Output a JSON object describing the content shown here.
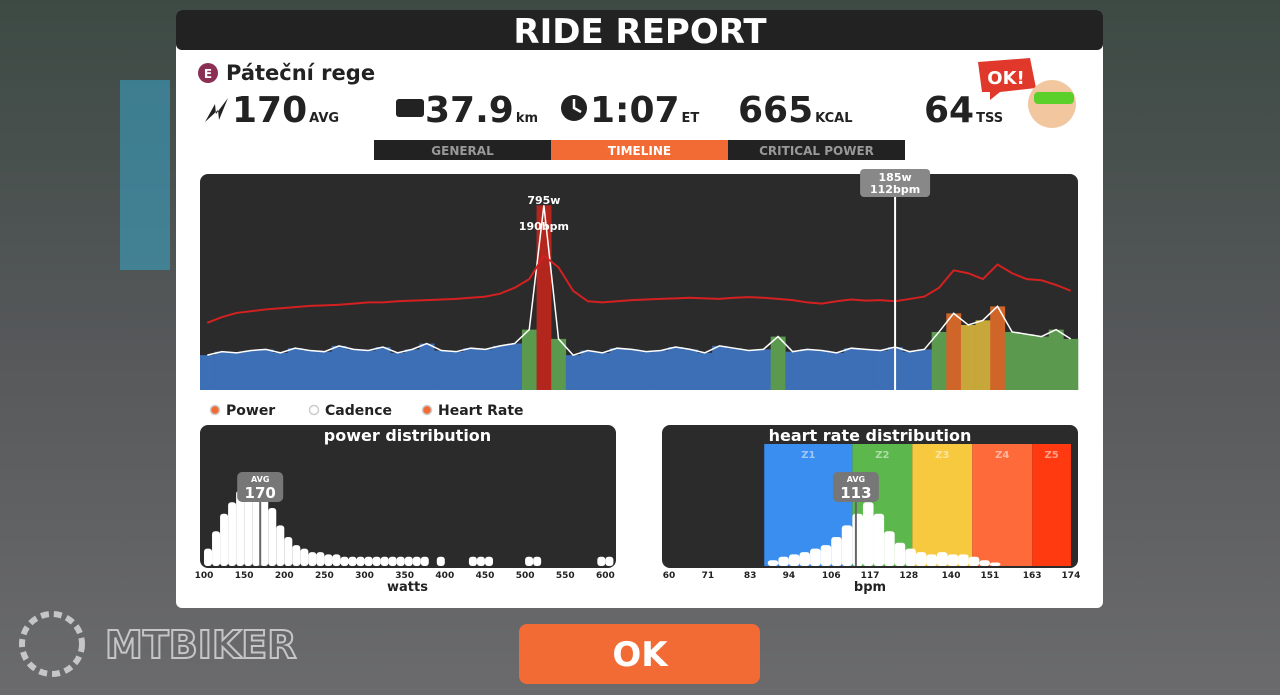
{
  "header": {
    "title": "RIDE REPORT"
  },
  "ride": {
    "badge": "E",
    "name": "Páteční rege",
    "mascot": "OK!"
  },
  "stats": [
    {
      "value": "170",
      "unit": "AVG"
    },
    {
      "value": "37.9",
      "unit": "km"
    },
    {
      "value": "1:07",
      "unit": "ET"
    },
    {
      "value": "665",
      "unit": "KCAL"
    },
    {
      "value": "64",
      "unit": "TSS"
    }
  ],
  "tabs": [
    "GENERAL",
    "TIMELINE",
    "CRITICAL POWER"
  ],
  "timeline": {
    "power": [
      150,
      165,
      160,
      170,
      175,
      160,
      180,
      170,
      165,
      190,
      175,
      170,
      185,
      160,
      175,
      200,
      170,
      165,
      180,
      175,
      190,
      200,
      260,
      795,
      220,
      150,
      170,
      160,
      180,
      175,
      165,
      170,
      185,
      175,
      160,
      190,
      180,
      170,
      175,
      230,
      165,
      175,
      170,
      160,
      180,
      175,
      170,
      185,
      165,
      175,
      250,
      330,
      280,
      300,
      360,
      250,
      240,
      230,
      260,
      220
    ],
    "heart_rate": [
      75,
      85,
      92,
      95,
      98,
      100,
      102,
      104,
      105,
      106,
      108,
      110,
      110,
      112,
      113,
      114,
      115,
      116,
      118,
      120,
      125,
      135,
      150,
      190,
      170,
      130,
      112,
      110,
      112,
      114,
      115,
      116,
      117,
      118,
      117,
      116,
      118,
      119,
      118,
      116,
      114,
      110,
      108,
      112,
      115,
      113,
      114,
      112,
      116,
      120,
      135,
      165,
      160,
      150,
      175,
      160,
      150,
      148,
      140,
      130
    ],
    "power_ylim": [
      0,
      930
    ],
    "hr_ylim": [
      -40,
      330
    ],
    "power_zone_colors": [
      {
        "max": 200,
        "color": "#3d6fb6"
      },
      {
        "max": 260,
        "color": "#5b9a4e"
      },
      {
        "max": 320,
        "color": "#c8a73a"
      },
      {
        "max": 400,
        "color": "#d0652a"
      },
      {
        "color": "#b3261e"
      }
    ],
    "hr_color": "#d42020",
    "peak": {
      "power_label": "795w",
      "hr_label": "190bpm"
    },
    "cursor": {
      "power_label": "185w",
      "hr_label": "112bpm"
    }
  },
  "legend": [
    "Power",
    "Cadence",
    "Heart Rate"
  ],
  "power_distribution": {
    "type": "histogram",
    "title": "power distribution",
    "x_label": "watts",
    "bins": [
      100,
      110,
      120,
      130,
      140,
      150,
      160,
      170,
      180,
      190,
      200,
      210,
      220,
      230,
      240,
      250,
      260,
      270,
      280,
      290,
      300,
      310,
      320,
      330,
      340,
      350,
      360,
      370,
      380,
      390,
      400,
      410,
      420,
      430,
      440,
      450,
      460,
      470,
      480,
      490,
      500,
      510,
      520,
      530,
      540,
      550,
      560,
      570,
      580,
      590,
      600,
      610
    ],
    "counts": [
      15,
      30,
      45,
      55,
      65,
      75,
      80,
      70,
      50,
      35,
      25,
      18,
      15,
      12,
      12,
      10,
      10,
      8,
      8,
      8,
      8,
      8,
      8,
      8,
      8,
      8,
      8,
      8,
      0,
      8,
      0,
      0,
      0,
      8,
      8,
      8,
      0,
      0,
      0,
      0,
      8,
      8,
      0,
      0,
      0,
      0,
      0,
      0,
      0,
      8,
      8
    ],
    "xlim": [
      95,
      612
    ],
    "ylim": [
      0,
      100
    ],
    "xticks": [
      100,
      150,
      200,
      250,
      300,
      350,
      400,
      450,
      500,
      550,
      600
    ],
    "avg_label": "AVG",
    "avg": 170
  },
  "hr_distribution": {
    "type": "histogram",
    "title": "heart rate distribution",
    "x_label": "bpm",
    "bins": [
      88,
      91,
      94,
      97,
      100,
      103,
      106,
      109,
      112,
      115,
      118,
      121,
      124,
      127,
      130,
      133,
      136,
      139,
      142,
      145,
      148,
      151,
      154
    ],
    "counts": [
      5,
      8,
      10,
      12,
      15,
      18,
      25,
      35,
      45,
      55,
      45,
      30,
      20,
      15,
      12,
      10,
      12,
      10,
      10,
      8,
      5,
      3
    ],
    "xlim": [
      58,
      176
    ],
    "ylim": [
      0,
      100
    ],
    "xticks": [
      60,
      71,
      83,
      94,
      106,
      117,
      128,
      140,
      151,
      163,
      174
    ],
    "zones": [
      {
        "name": "Z1",
        "from": 87,
        "to": 112,
        "color": "#3a8ef0"
      },
      {
        "name": "Z2",
        "from": 112,
        "to": 129,
        "color": "#5cb84c"
      },
      {
        "name": "Z3",
        "from": 129,
        "to": 146,
        "color": "#f7c93e"
      },
      {
        "name": "Z4",
        "from": 146,
        "to": 163,
        "color": "#ff6a3a"
      },
      {
        "name": "Z5",
        "from": 163,
        "to": 174,
        "color": "#ff3a10"
      }
    ],
    "avg_label": "AVG",
    "avg": 113
  },
  "button": "OK",
  "watermark": "MTBIKER"
}
